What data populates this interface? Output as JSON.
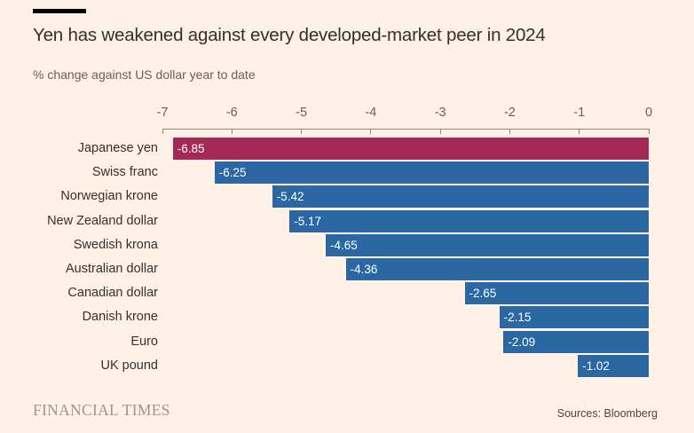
{
  "header": {
    "title": "Yen has weakened against every developed-market peer in 2024",
    "subtitle": "% change against US dollar year to date"
  },
  "footer": {
    "brand": "FINANCIAL TIMES",
    "source": "Sources: Bloomberg"
  },
  "colors": {
    "background": "#fff1e5",
    "bar_highlight": "#a42954",
    "bar_default": "#2b67a3",
    "title_text": "#33302e",
    "muted_text": "#66605c",
    "axis": "#8f8981",
    "value_text": "#ffffff"
  },
  "chart_data": {
    "type": "bar",
    "orientation": "horizontal",
    "title": "Yen has weakened against every developed-market peer in 2024",
    "subtitle": "% change against US dollar year to date",
    "categories": [
      "Japanese yen",
      "Swiss franc",
      "Norwegian krone",
      "New Zealand dollar",
      "Swedish krona",
      "Australian dollar",
      "Canadian dollar",
      "Danish krone",
      "Euro",
      "UK pound"
    ],
    "values": [
      -6.85,
      -6.25,
      -5.42,
      -5.17,
      -4.65,
      -4.36,
      -2.65,
      -2.15,
      -2.09,
      -1.02
    ],
    "value_labels": [
      "-6.85",
      "-6.25",
      "-5.42",
      "-5.17",
      "-4.65",
      "-4.36",
      "-2.65",
      "-2.15",
      "-2.09",
      "-1.02"
    ],
    "highlight_index": 0,
    "xlim": [
      -7,
      0
    ],
    "x_ticks": [
      -7,
      -6,
      -5,
      -4,
      -3,
      -2,
      -1,
      0
    ],
    "xlabel": "",
    "ylabel": "",
    "grid": false,
    "legend": false,
    "bars_anchored_at": 0,
    "value_label_position": "inside-left"
  }
}
